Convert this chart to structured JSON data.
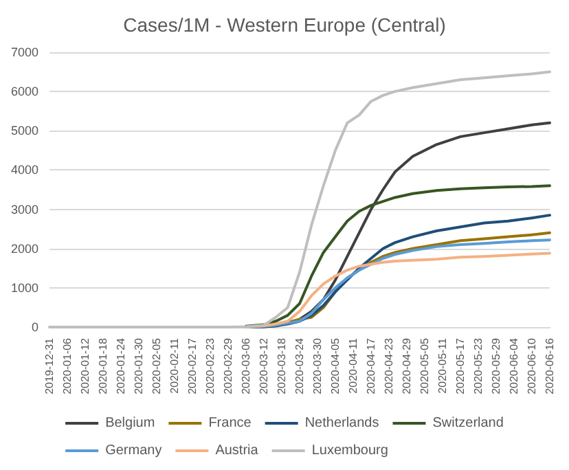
{
  "chart_data": {
    "type": "line",
    "title": "Cases/1M - Western Europe (Central)",
    "x": [
      "2019-12-31",
      "2020-02-29",
      "2020-03-06",
      "2020-03-12",
      "2020-03-16",
      "2020-03-20",
      "2020-03-24",
      "2020-03-28",
      "2020-04-01",
      "2020-04-05",
      "2020-04-09",
      "2020-04-13",
      "2020-04-17",
      "2020-04-21",
      "2020-04-25",
      "2020-05-01",
      "2020-05-09",
      "2020-05-17",
      "2020-05-25",
      "2020-06-02",
      "2020-06-10",
      "2020-06-16"
    ],
    "series": [
      {
        "name": "Belgium",
        "color": "#404040",
        "values": [
          null,
          null,
          0,
          10,
          30,
          100,
          200,
          400,
          700,
          1200,
          1800,
          2400,
          3000,
          3500,
          3950,
          4350,
          4650,
          4850,
          4950,
          5050,
          5150,
          5200
        ]
      },
      {
        "name": "France",
        "color": "#997300",
        "values": [
          null,
          null,
          0,
          30,
          70,
          120,
          200,
          250,
          500,
          900,
          1250,
          1450,
          1650,
          1800,
          1900,
          2000,
          2100,
          2200,
          2250,
          2300,
          2350,
          2400
        ]
      },
      {
        "name": "Netherlands",
        "color": "#1f4e79",
        "values": [
          null,
          null,
          0,
          10,
          30,
          80,
          150,
          300,
          550,
          900,
          1200,
          1500,
          1750,
          2000,
          2150,
          2300,
          2450,
          2550,
          2650,
          2700,
          2780,
          2850
        ]
      },
      {
        "name": "Switzerland",
        "color": "#375623",
        "values": [
          null,
          null,
          20,
          60,
          150,
          300,
          600,
          1300,
          1900,
          2300,
          2700,
          2950,
          3100,
          3200,
          3300,
          3400,
          3480,
          3520,
          3550,
          3570,
          3580,
          3600
        ]
      },
      {
        "name": "Germany",
        "color": "#5b9bd5",
        "values": [
          null,
          null,
          0,
          20,
          50,
          100,
          150,
          350,
          700,
          1000,
          1250,
          1450,
          1600,
          1750,
          1850,
          1950,
          2050,
          2100,
          2130,
          2170,
          2200,
          2220
        ]
      },
      {
        "name": "Austria",
        "color": "#f4b183",
        "values": [
          null,
          null,
          0,
          30,
          80,
          150,
          400,
          800,
          1100,
          1300,
          1450,
          1550,
          1600,
          1650,
          1680,
          1700,
          1730,
          1780,
          1800,
          1830,
          1860,
          1880
        ]
      },
      {
        "name": "Luxembourg",
        "color": "#bfbfbf",
        "values": [
          0,
          0,
          10,
          50,
          250,
          500,
          1400,
          2600,
          3600,
          4500,
          5200,
          5400,
          5750,
          5900,
          6000,
          6100,
          6200,
          6300,
          6350,
          6400,
          6450,
          6500
        ]
      }
    ],
    "xlim": [
      "2019-12-31",
      "2020-06-16"
    ],
    "xticks": [
      "2019-12-31",
      "2020-01-06",
      "2020-01-12",
      "2020-01-18",
      "2020-01-24",
      "2020-01-30",
      "2020-02-05",
      "2020-02-11",
      "2020-02-17",
      "2020-02-23",
      "2020-02-29",
      "2020-03-06",
      "2020-03-12",
      "2020-03-18",
      "2020-03-24",
      "2020-03-30",
      "2020-04-05",
      "2020-04-11",
      "2020-04-17",
      "2020-04-23",
      "2020-04-29",
      "2020-05-05",
      "2020-05-11",
      "2020-05-17",
      "2020-05-23",
      "2020-05-29",
      "2020-06-04",
      "2020-06-10",
      "2020-06-16"
    ],
    "ylim": [
      0,
      7000
    ],
    "yticks": [
      0,
      1000,
      2000,
      3000,
      4000,
      5000,
      6000,
      7000
    ],
    "grid": "y",
    "legend": "bottom",
    "marker": "none",
    "line_style": "solid"
  }
}
